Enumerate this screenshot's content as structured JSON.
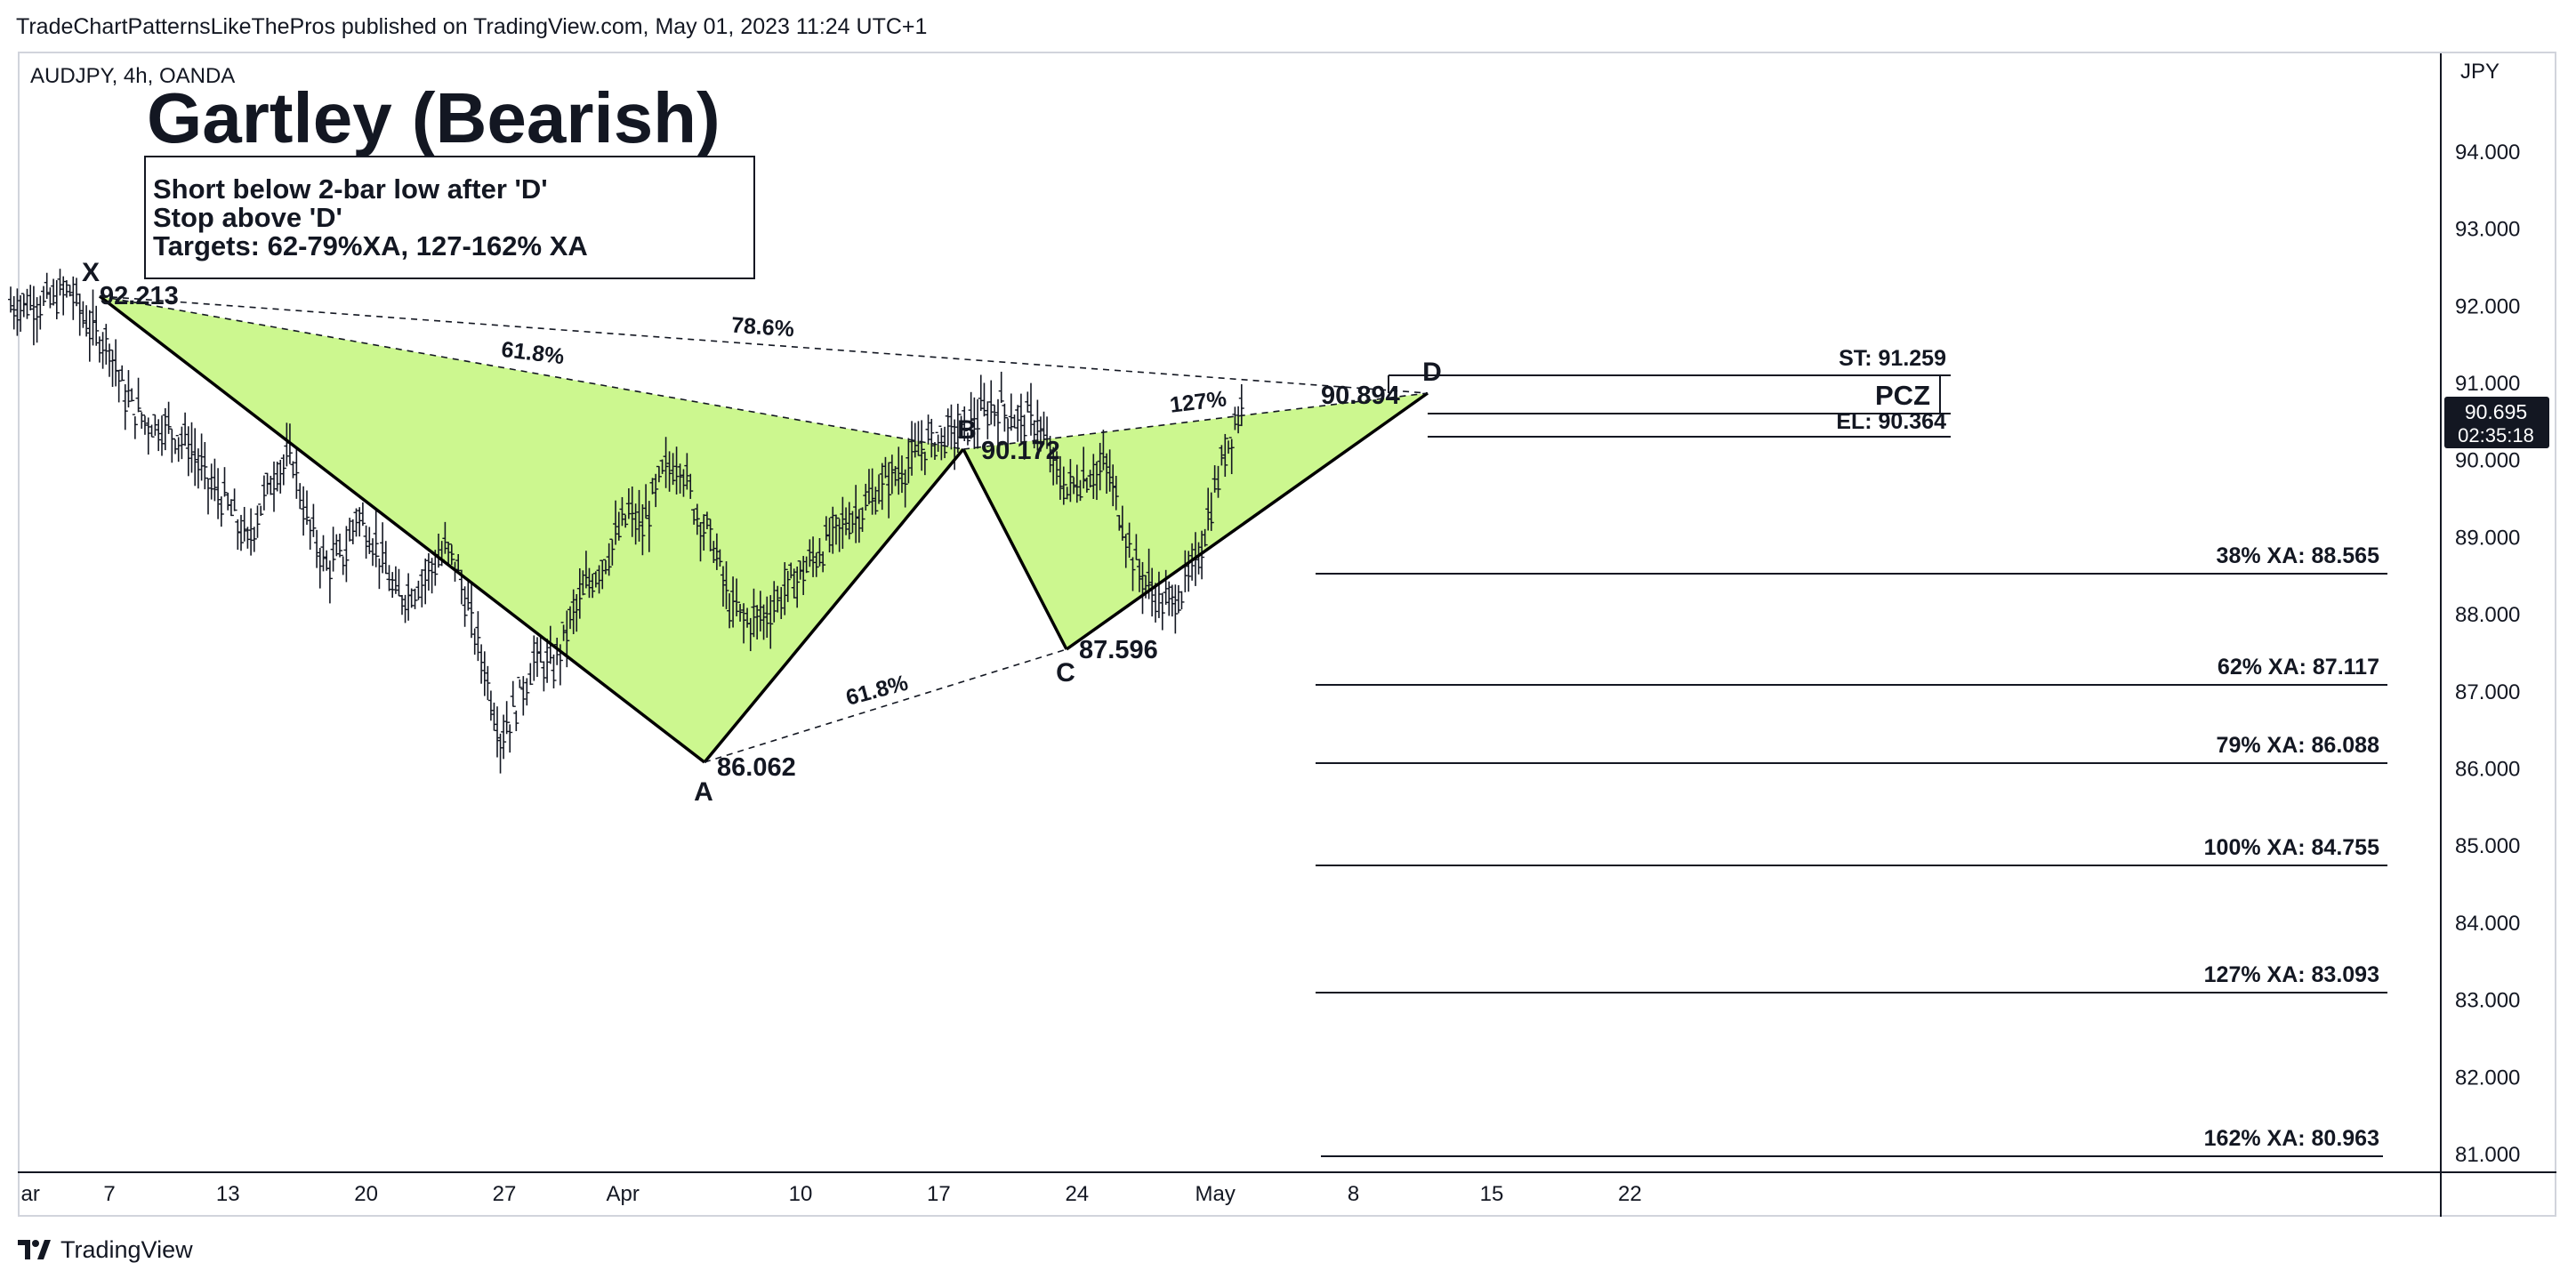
{
  "header": {
    "published_by": "TradeChartPatternsLikeThePros published on TradingView.com, May 01, 2023 11:24 UTC+1"
  },
  "footer": {
    "brand": "TradingView",
    "logo_icon": "tradingview-logo-icon"
  },
  "chart_data": {
    "type": "candlestick",
    "symbol_line": "AUDJPY, 4h, OANDA",
    "title": "Gartley (Bearish)",
    "notes": [
      "Short below 2-bar low after 'D'",
      "Stop above 'D'",
      "Targets: 62-79%XA, 127-162% XA"
    ],
    "currency": "JPY",
    "ylim": [
      80.75,
      95.0
    ],
    "y_ticks": [
      "81.000",
      "82.000",
      "83.000",
      "84.000",
      "85.000",
      "86.000",
      "87.000",
      "88.000",
      "89.000",
      "90.000",
      "91.000",
      "92.000",
      "93.000",
      "94.000"
    ],
    "x_range_days": [
      0,
      55
    ],
    "x_ticks": [
      {
        "label": "ar",
        "day": 1
      },
      {
        "label": "7",
        "day": 5
      },
      {
        "label": "13",
        "day": 11
      },
      {
        "label": "20",
        "day": 18
      },
      {
        "label": "27",
        "day": 25
      },
      {
        "label": "Apr",
        "day": 31
      },
      {
        "label": "10",
        "day": 40
      },
      {
        "label": "17",
        "day": 47
      },
      {
        "label": "24",
        "day": 54
      },
      {
        "label": "May",
        "day": 61
      },
      {
        "label": "8",
        "day": 68
      },
      {
        "label": "15",
        "day": 75
      },
      {
        "label": "22",
        "day": 82
      }
    ],
    "pattern_points": [
      {
        "name": "X",
        "day": 3.0,
        "price": 92.213,
        "label": "92.213"
      },
      {
        "name": "A",
        "day": 24.8,
        "price": 86.062,
        "label": "86.062"
      },
      {
        "name": "B",
        "day": 33.9,
        "price": 90.172,
        "label": "90.172"
      },
      {
        "name": "C",
        "day": 37.6,
        "price": 87.596,
        "label": "87.596"
      },
      {
        "name": "D",
        "day": 50.0,
        "price": 90.894,
        "label": "90.894"
      }
    ],
    "ratios": [
      {
        "label": "61.8%",
        "from": "X",
        "to": "B"
      },
      {
        "label": "78.6%",
        "from": "X",
        "to": "D"
      },
      {
        "label": "61.8%",
        "from": "A",
        "to": "C"
      },
      {
        "label": "127%",
        "from": "B",
        "to": "D"
      }
    ],
    "pcz": {
      "label": "PCZ",
      "stop_label": "ST: 91.259",
      "stop": 91.259,
      "entry_label": "EL: 90.364",
      "entry": 90.364,
      "mid": 90.894
    },
    "targets": [
      {
        "label": "38% XA: 88.565",
        "value": 88.565
      },
      {
        "label": "62% XA: 87.117",
        "value": 87.117
      },
      {
        "label": "79% XA: 86.088",
        "value": 86.088
      },
      {
        "label": "100% XA: 84.755",
        "value": 84.755
      },
      {
        "label": "127% XA: 83.093",
        "value": 83.093
      },
      {
        "label": "162% XA: 80.963",
        "value": 80.963
      }
    ],
    "last_price": {
      "value": 90.695,
      "label": "90.695",
      "countdown": "02:35:18"
    },
    "price_path": [
      [
        0.0,
        92.0
      ],
      [
        2.0,
        92.05
      ],
      [
        3.0,
        92.2
      ],
      [
        4.0,
        91.7
      ],
      [
        5.0,
        91.5
      ],
      [
        5.8,
        90.8
      ],
      [
        6.8,
        90.5
      ],
      [
        8.0,
        90.4
      ],
      [
        9.0,
        90.2
      ],
      [
        10.0,
        89.7
      ],
      [
        11.0,
        89.4
      ],
      [
        12.0,
        88.9
      ],
      [
        12.5,
        89.3
      ],
      [
        13.5,
        89.9
      ],
      [
        14.3,
        90.0
      ],
      [
        15.0,
        89.2
      ],
      [
        16.0,
        88.6
      ],
      [
        17.0,
        88.8
      ],
      [
        17.5,
        89.3
      ],
      [
        18.5,
        88.9
      ],
      [
        19.5,
        88.2
      ],
      [
        20.3,
        88.3
      ],
      [
        21.0,
        88.5
      ],
      [
        22.0,
        88.8
      ],
      [
        22.5,
        88.7
      ],
      [
        23.0,
        88.2
      ],
      [
        24.0,
        87.3
      ],
      [
        24.8,
        86.4
      ],
      [
        25.6,
        86.8
      ],
      [
        26.5,
        87.4
      ],
      [
        27.5,
        87.3
      ],
      [
        28.5,
        88.0
      ],
      [
        29.3,
        88.4
      ],
      [
        30.3,
        88.8
      ],
      [
        31.3,
        89.3
      ],
      [
        32.0,
        89.1
      ],
      [
        33.0,
        89.8
      ],
      [
        33.9,
        90.0
      ],
      [
        34.6,
        89.4
      ],
      [
        35.6,
        88.9
      ],
      [
        36.4,
        88.1
      ],
      [
        37.3,
        87.9
      ],
      [
        38.3,
        88.0
      ],
      [
        39.2,
        88.3
      ],
      [
        40.3,
        88.6
      ],
      [
        41.3,
        88.9
      ],
      [
        42.3,
        89.2
      ],
      [
        43.3,
        89.4
      ],
      [
        44.3,
        89.7
      ],
      [
        45.3,
        89.9
      ],
      [
        46.3,
        90.2
      ],
      [
        47.3,
        90.3
      ],
      [
        48.3,
        90.4
      ],
      [
        49.3,
        90.6
      ],
      [
        50.0,
        90.7
      ],
      [
        51.0,
        90.5
      ],
      [
        52.0,
        90.5
      ],
      [
        52.8,
        89.9
      ],
      [
        53.5,
        89.6
      ],
      [
        54.5,
        89.8
      ],
      [
        55.5,
        89.9
      ],
      [
        56.3,
        89.2
      ],
      [
        57.0,
        88.6
      ],
      [
        57.8,
        88.3
      ],
      [
        58.5,
        88.1
      ],
      [
        59.3,
        88.3
      ],
      [
        60.0,
        88.6
      ],
      [
        60.8,
        89.4
      ],
      [
        61.5,
        90.1
      ],
      [
        62.0,
        90.5
      ],
      [
        62.5,
        90.75
      ]
    ]
  }
}
